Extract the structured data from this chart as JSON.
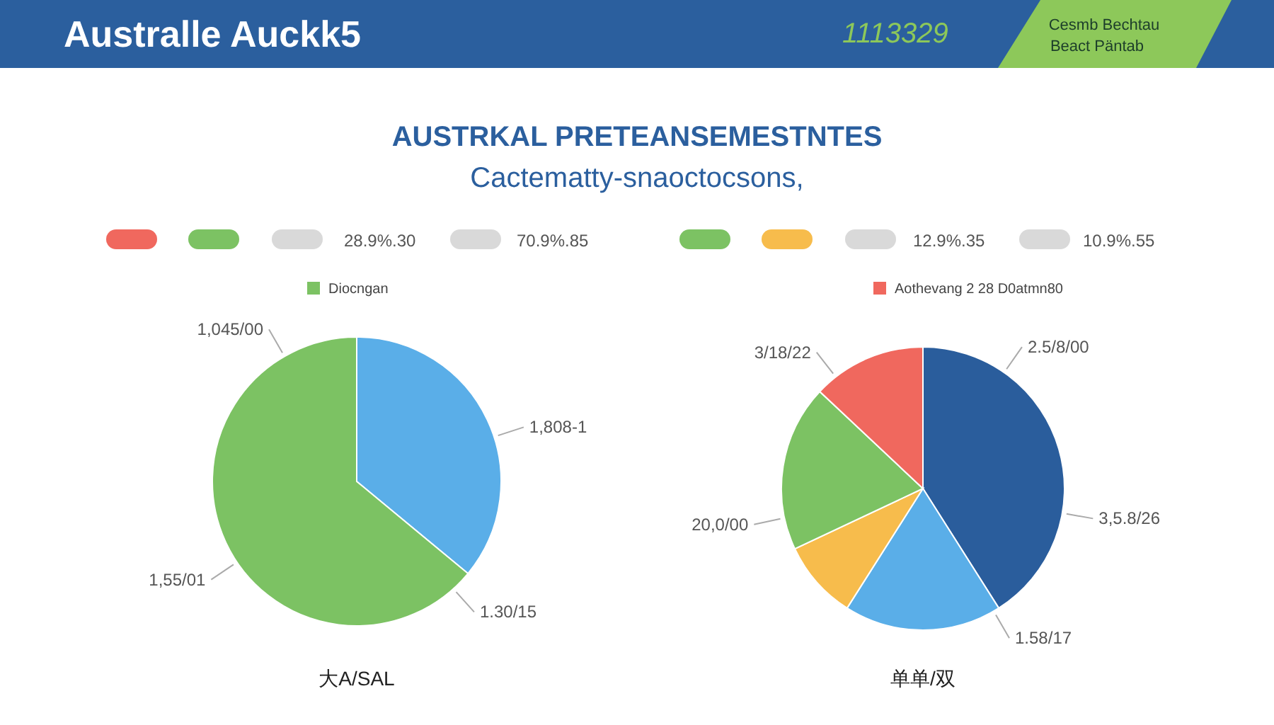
{
  "chart_data": [
    {
      "type": "pie",
      "title": "AUSTRKAL PRETEANSEMESTNTES",
      "subtitle": "Cactematty-snaoctocsons,",
      "xlabel": "大A/SAL",
      "legend": "top",
      "categories": [
        null,
        "Diocngan"
      ],
      "values": [
        36,
        64
      ],
      "colors": [
        "#5aaee8",
        "#7cc263"
      ],
      "annotations": [
        "Australle Auckk5",
        "1113329",
        "Cesmb Bechtau",
        "Beact Päntab",
        "28.9%.30",
        "70.9%.85",
        "1,045/00",
        "1,808-1",
        "1.30/15",
        "1,55/01"
      ]
    },
    {
      "type": "pie",
      "xlabel": "单单/双",
      "legend": "top",
      "categories": [
        null,
        null,
        null,
        null,
        "Aothevang 2 28 D0atmn80"
      ],
      "values": [
        41,
        18,
        9,
        19,
        13
      ],
      "colors": [
        "#2a5d9c",
        "#5aaee8",
        "#f7bc4c",
        "#7cc263",
        "#f0685e"
      ],
      "annotations": [
        "12.9%.35",
        "10.9%.55",
        "2.5/8/00",
        "3,5.8/26",
        "1.58/17",
        "20,0/00",
        "3/18/22"
      ]
    }
  ]
}
